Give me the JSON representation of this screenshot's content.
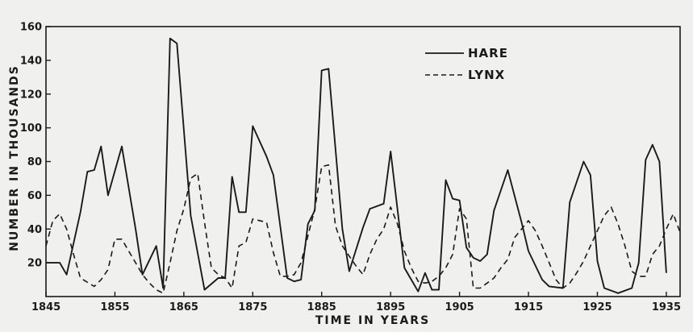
{
  "chart_data": {
    "type": "line",
    "title": "",
    "xlabel": "TIME   IN   YEARS",
    "ylabel": "NUMBER  IN  THOUSANDS",
    "xlim": [
      1845,
      1937
    ],
    "ylim": [
      0,
      160
    ],
    "x_ticks": [
      1845,
      1855,
      1865,
      1875,
      1885,
      1895,
      1905,
      1915,
      1925,
      1935
    ],
    "y_ticks": [
      20,
      40,
      60,
      80,
      100,
      120,
      140,
      160
    ],
    "grid": false,
    "legend_position": "top-right",
    "series": [
      {
        "name": "HARE",
        "style": "solid",
        "color": "#1a1a1a",
        "x": [
          1845,
          1847,
          1848,
          1850,
          1851,
          1852,
          1853,
          1854,
          1856,
          1858,
          1859,
          1861,
          1862,
          1863,
          1864,
          1866,
          1868,
          1870,
          1871,
          1872,
          1873,
          1874,
          1875,
          1877,
          1878,
          1880,
          1881,
          1882,
          1883,
          1884,
          1885,
          1886,
          1888,
          1889,
          1891,
          1892,
          1894,
          1895,
          1897,
          1899,
          1900,
          1901,
          1902,
          1903,
          1904,
          1905,
          1906,
          1907,
          1908,
          1909,
          1910,
          1912,
          1914,
          1915,
          1917,
          1918,
          1920,
          1921,
          1923,
          1924,
          1925,
          1926,
          1928,
          1930,
          1931,
          1932,
          1933,
          1934,
          1935
        ],
        "values": [
          20,
          20,
          13,
          50,
          74,
          75,
          89,
          60,
          89,
          40,
          13,
          30,
          5,
          153,
          150,
          48,
          4,
          11,
          11,
          71,
          50,
          50,
          101,
          83,
          72,
          11,
          9,
          10,
          43,
          51,
          134,
          135,
          40,
          15,
          41,
          52,
          55,
          86,
          17,
          3,
          14,
          4,
          4,
          69,
          58,
          57,
          29,
          23,
          21,
          25,
          51,
          75,
          44,
          27,
          10,
          6,
          5,
          56,
          80,
          72,
          21,
          5,
          2,
          5,
          20,
          81,
          90,
          80,
          14
        ]
      },
      {
        "name": "LYNX",
        "style": "dashed",
        "color": "#1a1a1a",
        "x": [
          1845,
          1846,
          1847,
          1848,
          1849,
          1850,
          1852,
          1853,
          1854,
          1855,
          1856,
          1857,
          1858,
          1859,
          1860,
          1861,
          1862,
          1863,
          1864,
          1865,
          1866,
          1867,
          1868,
          1869,
          1870,
          1871,
          1872,
          1873,
          1874,
          1875,
          1876,
          1877,
          1878,
          1879,
          1880,
          1881,
          1882,
          1883,
          1884,
          1885,
          1886,
          1887,
          1888,
          1889,
          1890,
          1891,
          1892,
          1893,
          1894,
          1895,
          1896,
          1897,
          1898,
          1899,
          1900,
          1901,
          1902,
          1903,
          1904,
          1905,
          1906,
          1907,
          1908,
          1909,
          1910,
          1911,
          1912,
          1913,
          1914,
          1915,
          1916,
          1917,
          1918,
          1919,
          1920,
          1921,
          1922,
          1923,
          1924,
          1925,
          1926,
          1927,
          1928,
          1929,
          1930,
          1931,
          1932,
          1933,
          1934,
          1935,
          1936,
          1937
        ],
        "values": [
          30,
          45,
          49,
          40,
          25,
          11,
          6,
          10,
          16,
          34,
          34,
          27,
          20,
          13,
          8,
          4,
          2,
          20,
          39,
          52,
          70,
          73,
          44,
          17,
          13,
          11,
          5,
          30,
          32,
          46,
          45,
          44,
          26,
          12,
          12,
          13,
          20,
          36,
          52,
          77,
          78,
          42,
          30,
          24,
          18,
          13,
          25,
          34,
          40,
          53,
          43,
          27,
          17,
          9,
          8,
          9,
          12,
          17,
          25,
          52,
          46,
          5,
          5,
          8,
          11,
          17,
          22,
          35,
          40,
          45,
          39,
          30,
          20,
          10,
          5,
          8,
          14,
          21,
          30,
          39,
          48,
          53,
          43,
          30,
          15,
          12,
          12,
          25,
          30,
          40,
          49,
          38
        ]
      }
    ]
  }
}
